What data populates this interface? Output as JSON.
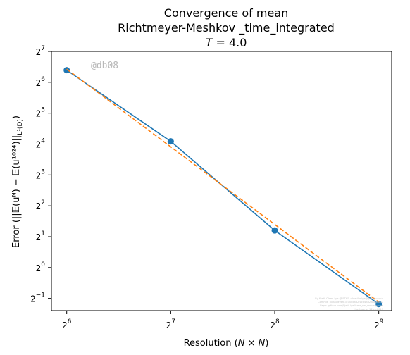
{
  "chart_data": {
    "type": "line",
    "title_lines": [
      "Convergence of mean",
      "Richtmeyer-Meshkov _time_integrated"
    ],
    "title_math": {
      "var": "T",
      "rest": " = 4.0"
    },
    "xlabel": {
      "text": "Resolution (",
      "math": "N × N",
      "close": ")"
    },
    "ylabel": "Error (||𝔼(uᴺ) − 𝔼(u¹⁰²⁴)||",
    "ylabel_sub": "L¹(D)",
    "ylabel_close": ")",
    "x_scale": "log2",
    "y_scale": "log2",
    "xlim": [
      57.8,
      558
    ],
    "ylim": [
      0.38,
      128
    ],
    "x_ticks": [
      {
        "value": 64,
        "base": "2",
        "exp": "6"
      },
      {
        "value": 128,
        "base": "2",
        "exp": "7"
      },
      {
        "value": 256,
        "base": "2",
        "exp": "8"
      },
      {
        "value": 512,
        "base": "2",
        "exp": "9"
      }
    ],
    "y_ticks": [
      {
        "value": 0.5,
        "base": "2",
        "exp": "−1"
      },
      {
        "value": 1,
        "base": "2",
        "exp": "0"
      },
      {
        "value": 2,
        "base": "2",
        "exp": "1"
      },
      {
        "value": 4,
        "base": "2",
        "exp": "2"
      },
      {
        "value": 8,
        "base": "2",
        "exp": "3"
      },
      {
        "value": 16,
        "base": "2",
        "exp": "4"
      },
      {
        "value": 32,
        "base": "2",
        "exp": "5"
      },
      {
        "value": 64,
        "base": "2",
        "exp": "6"
      },
      {
        "value": 128,
        "base": "2",
        "exp": "7"
      }
    ],
    "series": [
      {
        "style": "solid-markers",
        "color": "#1f77b4",
        "x": [
          64,
          128,
          256,
          512
        ],
        "y": [
          84,
          17.0,
          2.3,
          0.44
        ]
      },
      {
        "style": "dashed",
        "color": "#ff7f0e",
        "x": [
          64,
          512
        ],
        "y": [
          86,
          0.46
        ]
      }
    ],
    "grid": false,
    "legend": "none",
    "annotation": "@db08",
    "watermark_lines": [
      "By Kjetil Olsen Lye @ ETHZ <kjetil.o.lye@gmail.com>",
      "Commit: b0880d9bf83c10bc8a2f1ca4832dabacd07",
      "Repo: github.com/kjetil-lye/ismo_rm_convergence",
      "Hostname: 12.cv.0019"
    ]
  }
}
